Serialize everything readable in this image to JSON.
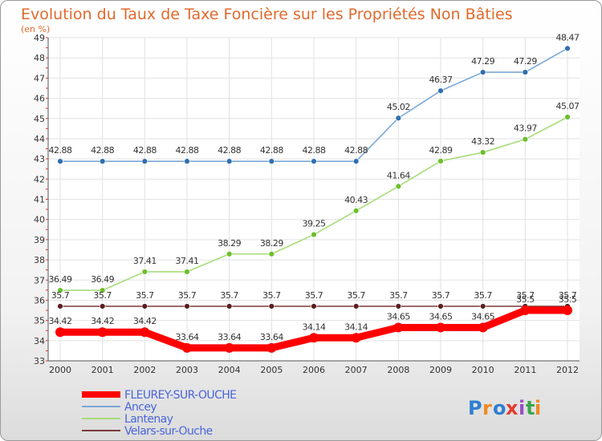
{
  "chart_data": {
    "type": "line",
    "title": "Evolution du Taux de Taxe Foncière sur les Propriétés Non Bâties",
    "subtitle": "(en %)",
    "categories": [
      "2000",
      "2001",
      "2002",
      "2003",
      "2004",
      "2005",
      "2006",
      "2007",
      "2008",
      "2009",
      "2010",
      "2011",
      "2012"
    ],
    "ylim": [
      33,
      49
    ],
    "yticks": [
      33,
      34,
      35,
      36,
      37,
      38,
      39,
      40,
      41,
      42,
      43,
      44,
      45,
      46,
      47,
      48,
      49
    ],
    "grid": true,
    "legend_position": "bottom-left",
    "series": [
      {
        "name": "FLEUREY-SUR-OUCHE",
        "color": "#ff0000",
        "values": [
          34.42,
          34.42,
          34.42,
          33.64,
          33.64,
          33.64,
          34.14,
          34.14,
          34.65,
          34.65,
          34.65,
          35.5,
          35.5
        ],
        "labels": [
          "34.42",
          "34.42",
          "34.42",
          "33.64",
          "33.64",
          "33.64",
          "34.14",
          "34.14",
          "34.65",
          "34.65",
          "34.65",
          "35.5",
          "35.5"
        ]
      },
      {
        "name": "Ancey",
        "color": "#7aa7d6",
        "marker": "#2f6fb0",
        "values": [
          42.88,
          42.88,
          42.88,
          42.88,
          42.88,
          42.88,
          42.88,
          42.88,
          45.02,
          46.37,
          47.29,
          47.29,
          48.47
        ],
        "labels": [
          "42.88",
          "42.88",
          "42.88",
          "42.88",
          "42.88",
          "42.88",
          "42.88",
          "42.88",
          "45.02",
          "46.37",
          "47.29",
          "47.29",
          "48.47"
        ]
      },
      {
        "name": "Lantenay",
        "color": "#a6dc7a",
        "marker": "#6cbf2a",
        "values": [
          36.49,
          36.49,
          37.41,
          37.41,
          38.29,
          38.29,
          39.25,
          40.43,
          41.64,
          42.89,
          43.32,
          43.97,
          45.07
        ],
        "labels": [
          "36.49",
          "36.49",
          "37.41",
          "37.41",
          "38.29",
          "38.29",
          "39.25",
          "40.43",
          "41.64",
          "42.89",
          "43.32",
          "43.97",
          "45.07"
        ]
      },
      {
        "name": "Velars-sur-Ouche",
        "color": "#7a3a3a",
        "marker": "#5a1f1f",
        "values": [
          35.7,
          35.7,
          35.7,
          35.7,
          35.7,
          35.7,
          35.7,
          35.7,
          35.7,
          35.7,
          35.7,
          35.7,
          35.7
        ],
        "labels": [
          "35.7",
          "35.7",
          "35.7",
          "35.7",
          "35.7",
          "35.7",
          "35.7",
          "35.7",
          "35.7",
          "35.7",
          "35.7",
          "35.7",
          "35.7"
        ]
      }
    ]
  },
  "branding": {
    "logo_text": "Proxiti",
    "letters": [
      "P",
      "r",
      "o",
      "x",
      "i",
      "t",
      "i"
    ],
    "letter_colors": [
      "#2e7fd0",
      "#f08a24",
      "#2e7fd0",
      "#e23b2e",
      "#9b4fc4",
      "#3aa64a",
      "#f08a24"
    ]
  }
}
